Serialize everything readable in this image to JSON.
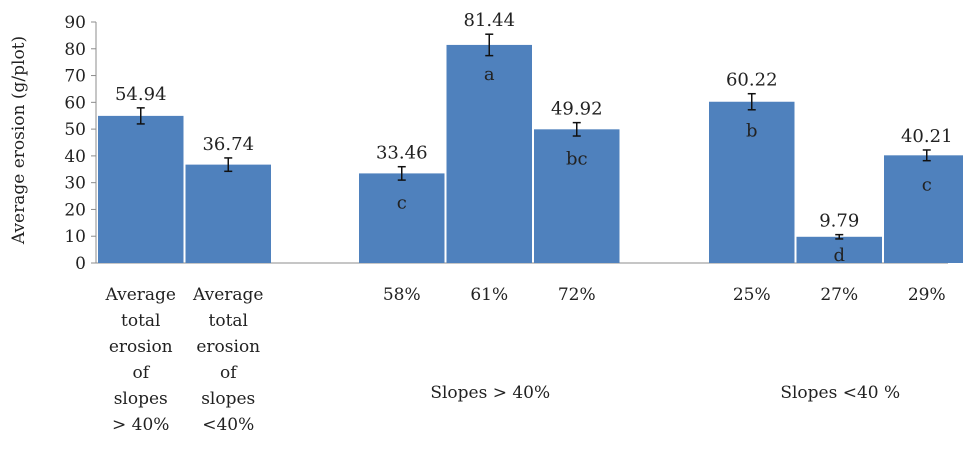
{
  "chart_data": {
    "type": "bar",
    "ylabel": "Average erosion (g/plot)",
    "ylim": [
      0,
      90
    ],
    "yticks": [
      0,
      10,
      20,
      30,
      40,
      50,
      60,
      70,
      80,
      90
    ],
    "grid": false,
    "bar_color": "#4f81bd",
    "groups": [
      {
        "label": "",
        "bars": [
          {
            "category": "Average total erosion of slopes > 40%",
            "category_lines": [
              "Average",
              "total",
              "erosion",
              "of",
              "slopes",
              "> 40%"
            ],
            "value": 54.94,
            "value_label": "54.94",
            "error": 3.0,
            "letter": ""
          },
          {
            "category": "Average total erosion of slopes <40%",
            "category_lines": [
              "Average",
              "total",
              "erosion",
              "of",
              "slopes",
              "<40%"
            ],
            "value": 36.74,
            "value_label": "36.74",
            "error": 2.5,
            "letter": ""
          }
        ]
      },
      {
        "label": "Slopes > 40%",
        "bars": [
          {
            "category": "58%",
            "category_lines": [
              "58%"
            ],
            "value": 33.46,
            "value_label": "33.46",
            "error": 2.5,
            "letter": "c"
          },
          {
            "category": "61%",
            "category_lines": [
              "61%"
            ],
            "value": 81.44,
            "value_label": "81.44",
            "error": 4.0,
            "letter": "a"
          },
          {
            "category": "72%",
            "category_lines": [
              "72%"
            ],
            "value": 49.92,
            "value_label": "49.92",
            "error": 2.5,
            "letter": "bc"
          }
        ]
      },
      {
        "label": "Slopes <40 %",
        "bars": [
          {
            "category": "25%",
            "category_lines": [
              "25%"
            ],
            "value": 60.22,
            "value_label": "60.22",
            "error": 3.0,
            "letter": "b"
          },
          {
            "category": "27%",
            "category_lines": [
              "27%"
            ],
            "value": 9.79,
            "value_label": "9.79",
            "error": 0.8,
            "letter": "d"
          },
          {
            "category": "29%",
            "category_lines": [
              "29%"
            ],
            "value": 40.21,
            "value_label": "40.21",
            "error": 2.0,
            "letter": "c"
          }
        ]
      }
    ]
  }
}
